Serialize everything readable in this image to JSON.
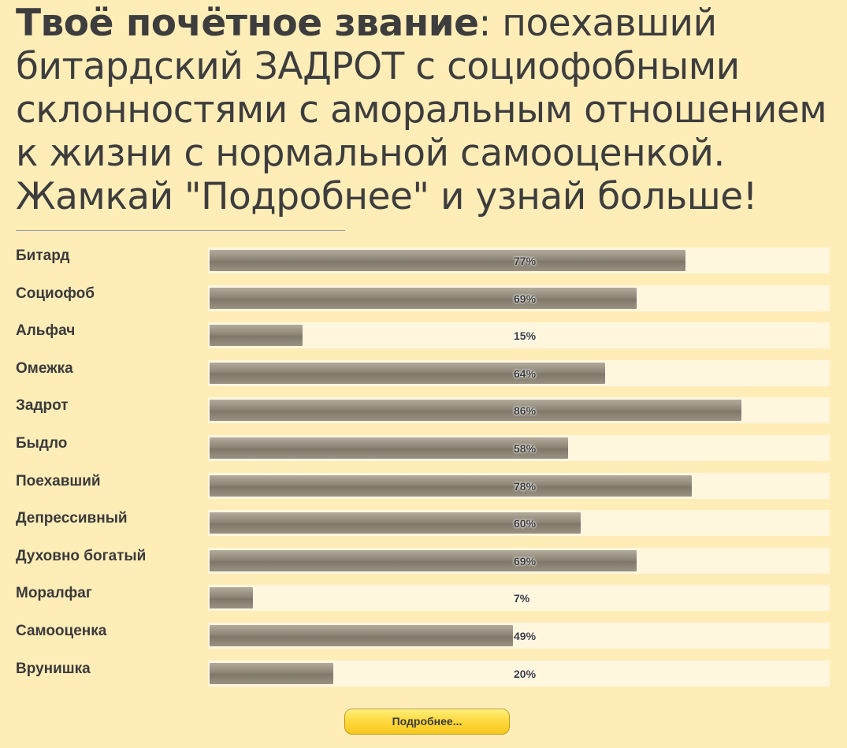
{
  "header": {
    "title_bold": "Твоё почётное звание",
    "title_rest": ": поехавший битардский ЗАДРОТ с социофобными склонностями с аморальным отношением к жизни с нормальной самооценкой. Жамкай \"Подробнее\" и узнай больше!"
  },
  "results": [
    {
      "label": "Битард",
      "value": 77,
      "text": "77%"
    },
    {
      "label": "Социофоб",
      "value": 69,
      "text": "69%"
    },
    {
      "label": "Альфач",
      "value": 15,
      "text": "15%"
    },
    {
      "label": "Омежка",
      "value": 64,
      "text": "64%"
    },
    {
      "label": "Задрот",
      "value": 86,
      "text": "86%"
    },
    {
      "label": "Быдло",
      "value": 58,
      "text": "58%"
    },
    {
      "label": "Поехавший",
      "value": 78,
      "text": "78%"
    },
    {
      "label": "Депрессивный",
      "value": 60,
      "text": "60%"
    },
    {
      "label": "Духовно богатый",
      "value": 69,
      "text": "69%"
    },
    {
      "label": "Моралфаг",
      "value": 7,
      "text": "7%"
    },
    {
      "label": "Самооценка",
      "value": 49,
      "text": "49%"
    },
    {
      "label": "Врунишка",
      "value": 20,
      "text": "20%"
    }
  ],
  "actions": {
    "more_label": "Подробнее..."
  },
  "colors": {
    "background": "#ffedb8",
    "track": "#fff6de",
    "bar": "#8e8676",
    "button": "#ffd83c"
  }
}
